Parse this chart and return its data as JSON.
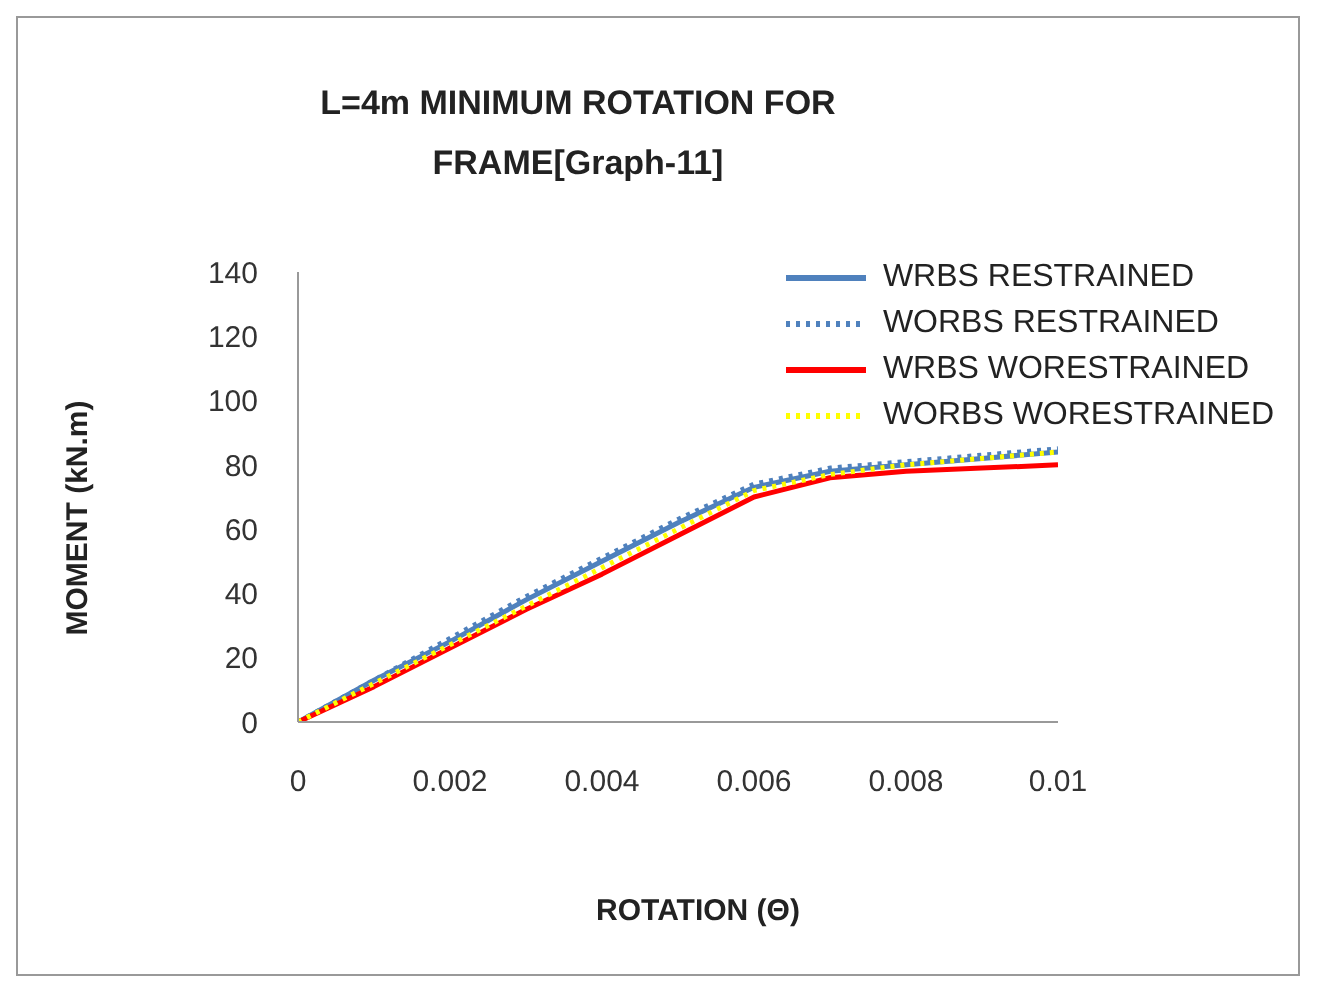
{
  "chart_data": {
    "type": "line",
    "title": "L=4m MINIMUM ROTATION FOR FRAME[Graph-11]",
    "xlabel": "ROTATION (Θ)",
    "ylabel": "MOMENT (kN.m)",
    "x": [
      0,
      0.001,
      0.002,
      0.003,
      0.004,
      0.005,
      0.006,
      0.007,
      0.008,
      0.009,
      0.01
    ],
    "series": [
      {
        "name": "WRBS RESTRAINED",
        "color": "#4f81bd",
        "line_style": "solid",
        "values": [
          0,
          13,
          25,
          38,
          50,
          62,
          73,
          78,
          80,
          82,
          84
        ]
      },
      {
        "name": "WORBS RESTRAINED",
        "color": "#4f81bd",
        "line_style": "dotted",
        "values": [
          0,
          13,
          26,
          39,
          51,
          63,
          74,
          79,
          81,
          83,
          85
        ]
      },
      {
        "name": "WRBS WORESTRAINED",
        "color": "#ff0000",
        "line_style": "solid",
        "values": [
          0,
          11,
          23,
          35,
          46,
          58,
          70,
          76,
          78,
          79,
          80
        ]
      },
      {
        "name": "WORBS WORESTRAINED",
        "color": "#ffff00",
        "line_style": "dotted",
        "values": [
          0,
          12,
          24,
          36,
          48,
          60,
          72,
          77,
          80,
          82,
          84
        ]
      }
    ],
    "xlim": [
      0,
      0.01
    ],
    "xticks": [
      0,
      0.002,
      0.004,
      0.006,
      0.008,
      0.01
    ],
    "ylim": [
      0,
      140
    ],
    "yticks": [
      0,
      20,
      40,
      60,
      80,
      100,
      120,
      140
    ],
    "grid": false,
    "legend": "top right",
    "marker": "none"
  }
}
